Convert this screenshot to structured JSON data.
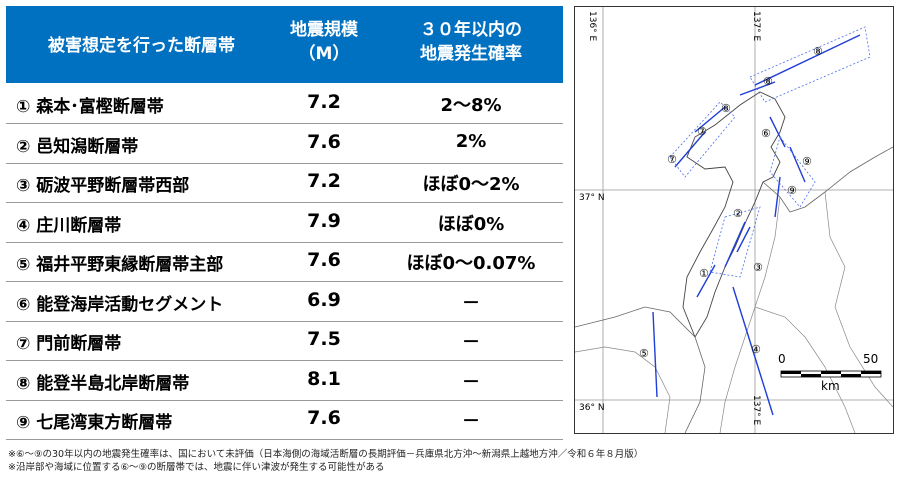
{
  "header": {
    "col1": "被害想定を行った断層帯",
    "col2_line1": "地震規模",
    "col2_line2": "（M）",
    "col3_line1": "３０年以内の",
    "col3_line2": "地震発生確率"
  },
  "rows": [
    {
      "name": "① 森本･富樫断層帯",
      "magnitude": "7.2",
      "probability": "2～8%"
    },
    {
      "name": "② 邑知潟断層帯",
      "magnitude": "7.6",
      "probability": "2%"
    },
    {
      "name": "③ 砺波平野断層帯西部",
      "magnitude": "7.2",
      "probability": "ほぼ0～2%"
    },
    {
      "name": "④ 庄川断層帯",
      "magnitude": "7.9",
      "probability": "ほぼ0%"
    },
    {
      "name": "⑤ 福井平野東縁断層帯主部",
      "magnitude": "7.6",
      "probability": "ほぼ0～0.07%"
    },
    {
      "name": "⑥ 能登海岸活動セグメント",
      "magnitude": "6.9",
      "probability": "－"
    },
    {
      "name": "⑦ 門前断層帯",
      "magnitude": "7.5",
      "probability": "－"
    },
    {
      "name": "⑧ 能登半島北岸断層帯",
      "magnitude": "8.1",
      "probability": "－"
    },
    {
      "name": "⑨ 七尾湾東方断層帯",
      "magnitude": "7.6",
      "probability": "－"
    }
  ],
  "notes": [
    "※⑥～⑨の30年以内の地震発生確率は、国において未評価（日本海側の海域活断層の長期評価－兵庫県北方沖～新潟県上越地方沖／令和６年８月版）",
    "※沿岸部や海域に位置する⑥～⑨の断層帯では、地震に伴い津波が発生する可能性がある"
  ],
  "map": {
    "lon_top_left": "136° E",
    "lon_top_right": "137° E",
    "lat_mid": "37° N",
    "lat_bottom": "36° N",
    "lon_bottom_right": "137° E",
    "scale_zero": "0",
    "scale_max": "50",
    "scale_unit": "km",
    "labels": [
      "⑧",
      "⑧",
      "⑧",
      "⑦",
      "⑦",
      "⑥",
      "⑨",
      "⑨",
      "②",
      "③",
      "①",
      "④",
      "⑤"
    ],
    "fault_color": "#1f3fd6"
  }
}
